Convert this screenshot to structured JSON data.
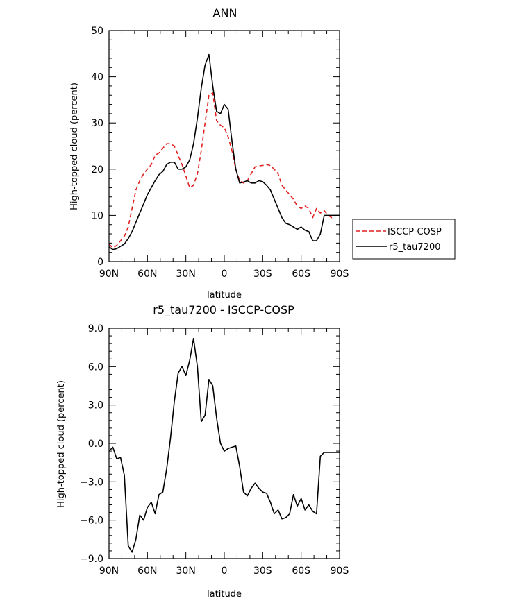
{
  "chart_data": [
    {
      "type": "line",
      "title": "ANN",
      "xlabel": "latitude",
      "ylabel": "High-topped cloud (percent)",
      "xlim": [
        90,
        -90
      ],
      "ylim": [
        0,
        50
      ],
      "xticks": [
        90,
        60,
        30,
        0,
        -30,
        -60,
        -90
      ],
      "xtick_labels": [
        "90N",
        "60N",
        "30N",
        "0",
        "30S",
        "60S",
        "90S"
      ],
      "yticks": [
        0,
        10,
        20,
        30,
        40,
        50
      ],
      "ytick_labels": [
        "0",
        "10",
        "20",
        "30",
        "40",
        "50"
      ],
      "legend_position": "outside-right",
      "series": [
        {
          "name": "ISCCP-COSP",
          "color": "#e02020",
          "style": "dashed",
          "x": [
            90,
            87,
            84,
            81,
            78,
            75,
            72,
            69,
            66,
            63,
            60,
            57,
            54,
            51,
            48,
            45,
            42,
            39,
            36,
            33,
            30,
            27,
            24,
            21,
            18,
            15,
            12,
            9,
            6,
            3,
            0,
            -3,
            -6,
            -9,
            -12,
            -15,
            -18,
            -21,
            -24,
            -27,
            -30,
            -33,
            -36,
            -39,
            -42,
            -45,
            -48,
            -51,
            -54,
            -57,
            -60,
            -63,
            -66,
            -69,
            -72,
            -75,
            -78,
            -81,
            -84,
            -87,
            -90
          ],
          "values": [
            3.8,
            3.0,
            3.5,
            4.5,
            5.5,
            7.5,
            11.5,
            15.5,
            17.5,
            19.0,
            20.0,
            21.0,
            23.0,
            23.5,
            24.5,
            25.5,
            25.5,
            25.0,
            23.0,
            21.0,
            18.5,
            16.0,
            16.5,
            19.0,
            24.0,
            30.0,
            36.0,
            36.5,
            30.5,
            29.5,
            29.0,
            27.0,
            24.0,
            20.0,
            17.5,
            17.0,
            17.5,
            19.0,
            20.5,
            20.7,
            20.8,
            21.0,
            20.8,
            20.0,
            19.0,
            16.5,
            15.5,
            14.5,
            13.5,
            12.0,
            11.5,
            12.0,
            11.5,
            9.5,
            11.5,
            10.5,
            11.0,
            10.0,
            9.5,
            10.0,
            10.0
          ]
        },
        {
          "name": "r5_tau7200",
          "color": "#000000",
          "style": "solid",
          "x": [
            90,
            87,
            84,
            81,
            78,
            75,
            72,
            69,
            66,
            63,
            60,
            57,
            54,
            51,
            48,
            45,
            42,
            39,
            36,
            33,
            30,
            27,
            24,
            21,
            18,
            15,
            12,
            9,
            6,
            3,
            0,
            -3,
            -6,
            -9,
            -12,
            -15,
            -18,
            -21,
            -24,
            -27,
            -30,
            -33,
            -36,
            -39,
            -42,
            -45,
            -48,
            -51,
            -54,
            -57,
            -60,
            -63,
            -66,
            -69,
            -72,
            -75,
            -78,
            -81,
            -84,
            -87,
            -90
          ],
          "values": [
            3.2,
            2.6,
            2.8,
            3.3,
            3.8,
            5.0,
            6.5,
            8.5,
            10.5,
            12.5,
            14.5,
            16.0,
            17.5,
            18.8,
            19.5,
            21.0,
            21.5,
            21.5,
            20.0,
            20.0,
            20.5,
            22.0,
            25.5,
            31.0,
            37.5,
            42.5,
            44.8,
            38.0,
            32.5,
            32.0,
            34.0,
            33.0,
            26.0,
            20.0,
            17.0,
            17.2,
            17.5,
            17.0,
            17.0,
            17.5,
            17.3,
            16.5,
            15.5,
            13.5,
            11.5,
            9.5,
            8.3,
            8.0,
            7.5,
            7.0,
            7.5,
            6.8,
            6.5,
            4.5,
            4.5,
            6.0,
            10.0,
            10.0,
            10.0,
            10.0,
            10.0
          ]
        }
      ]
    },
    {
      "type": "line",
      "title": "r5_tau7200 - ISCCP-COSP",
      "xlabel": "latitude",
      "ylabel": "High-topped cloud (percent)",
      "xlim": [
        90,
        -90
      ],
      "ylim": [
        -9.0,
        9.0
      ],
      "xticks": [
        90,
        60,
        30,
        0,
        -30,
        -60,
        -90
      ],
      "xtick_labels": [
        "90N",
        "60N",
        "30N",
        "0",
        "30S",
        "60S",
        "90S"
      ],
      "yticks": [
        9.0,
        6.0,
        3.0,
        0.0,
        -3.0,
        -6.0,
        -9.0
      ],
      "ytick_labels": [
        "9.0",
        "6.0",
        "3.0",
        "0.0",
        "−3.0",
        "−6.0",
        "−9.0"
      ],
      "series": [
        {
          "name": "r5_tau7200 - ISCCP-COSP",
          "color": "#000000",
          "style": "solid",
          "x": [
            90,
            87,
            84,
            81,
            78,
            75,
            72,
            69,
            66,
            63,
            60,
            57,
            54,
            51,
            48,
            45,
            42,
            39,
            36,
            33,
            30,
            27,
            24,
            21,
            18,
            15,
            12,
            9,
            6,
            3,
            0,
            -3,
            -6,
            -9,
            -12,
            -15,
            -18,
            -21,
            -24,
            -27,
            -30,
            -33,
            -36,
            -39,
            -42,
            -45,
            -48,
            -51,
            -54,
            -57,
            -60,
            -63,
            -66,
            -69,
            -72,
            -75,
            -78,
            -81,
            -84,
            -87,
            -90
          ],
          "values": [
            -0.6,
            -0.3,
            -1.2,
            -1.1,
            -2.5,
            -8.0,
            -8.5,
            -7.5,
            -5.6,
            -6.0,
            -5.0,
            -4.6,
            -5.5,
            -4.0,
            -3.8,
            -2.0,
            0.4,
            3.3,
            5.5,
            6.0,
            5.3,
            6.5,
            8.2,
            6.0,
            1.7,
            2.2,
            5.0,
            4.5,
            2.0,
            0.0,
            -0.6,
            -0.4,
            -0.3,
            -0.2,
            -1.8,
            -3.8,
            -4.1,
            -3.5,
            -3.1,
            -3.5,
            -3.8,
            -3.9,
            -4.6,
            -5.5,
            -5.2,
            -5.9,
            -5.8,
            -5.5,
            -4.0,
            -4.9,
            -4.3,
            -5.2,
            -4.8,
            -5.3,
            -5.5,
            -1.0,
            -0.7,
            -0.7,
            -0.7,
            -0.7,
            -0.7
          ]
        }
      ]
    }
  ]
}
